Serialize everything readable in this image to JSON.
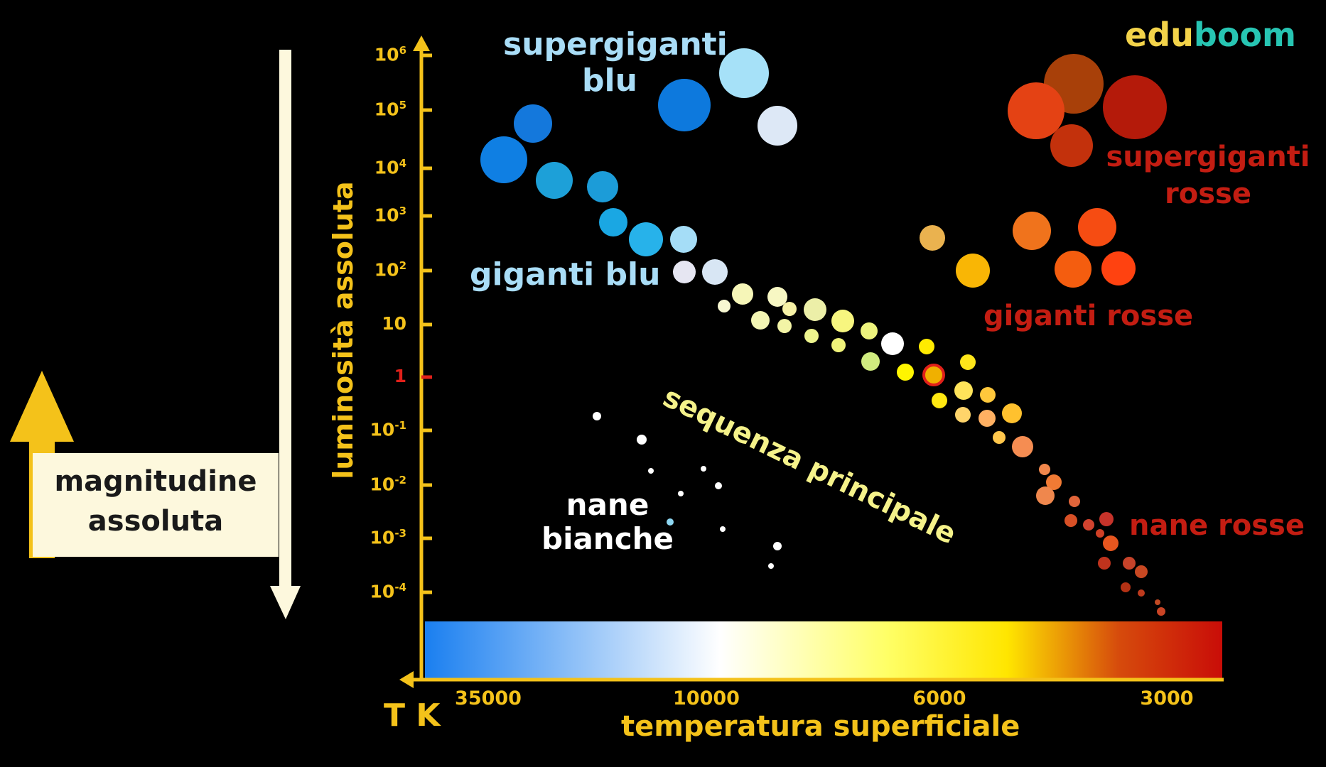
{
  "logo": {
    "part1": "edu",
    "part2": "boom",
    "color1": "#f3d34a",
    "color2": "#27c5b3"
  },
  "y_axis": {
    "label": "luminosità assoluta",
    "ticks": [
      {
        "id": "t6",
        "base": "10",
        "exp": "6"
      },
      {
        "id": "t5",
        "base": "10",
        "exp": "5"
      },
      {
        "id": "t4",
        "base": "10",
        "exp": "4"
      },
      {
        "id": "t3",
        "base": "10",
        "exp": "3"
      },
      {
        "id": "t2",
        "base": "10",
        "exp": "2"
      },
      {
        "id": "t1",
        "base": "10",
        "exp": ""
      },
      {
        "id": "t0",
        "base": "1",
        "exp": "",
        "sun": true
      },
      {
        "id": "tm1",
        "base": "10",
        "exp": "-1"
      },
      {
        "id": "tm2",
        "base": "10",
        "exp": "-2"
      },
      {
        "id": "tm3",
        "base": "10",
        "exp": "-3"
      },
      {
        "id": "tm4",
        "base": "10",
        "exp": "-4"
      }
    ]
  },
  "x_axis": {
    "unit": "T K",
    "label": "temperatura superficiale",
    "ticks": [
      "35000",
      "10000",
      "6000",
      "3000"
    ],
    "gradient": [
      "#1a7ff0",
      "#ffffff",
      "#ffff66",
      "#ffe600",
      "#d64b0c",
      "#c90d08"
    ]
  },
  "magnitude_label": {
    "line1": "magnitudine",
    "line2": "assoluta"
  },
  "regions": [
    {
      "id": "blue-supergiants",
      "line1": "supergiganti",
      "line2": "blu",
      "color": "#a9ddf7"
    },
    {
      "id": "blue-giants",
      "line1": "giganti blu",
      "line2": "",
      "color": "#a9ddf7"
    },
    {
      "id": "red-supergiants",
      "line1": "supergiganti",
      "line2": "rosse",
      "color": "#c31d12"
    },
    {
      "id": "red-giants",
      "line1": "giganti rosse",
      "line2": "",
      "color": "#c31d12"
    },
    {
      "id": "main-sequence",
      "line1": "sequenza principale",
      "line2": "",
      "color": "#f5f28a"
    },
    {
      "id": "red-dwarfs",
      "line1": "nane rosse",
      "line2": "",
      "color": "#c31d12"
    },
    {
      "id": "white-dwarfs",
      "line1": "nane",
      "line2": "bianche",
      "color": "#ffffff"
    }
  ],
  "colors": {
    "axis": "#f4c21a",
    "sun_tick": "#e0201a",
    "mag_arrow_up": "#f4c21a",
    "mag_arrow_down": "#fdf8dd"
  }
}
